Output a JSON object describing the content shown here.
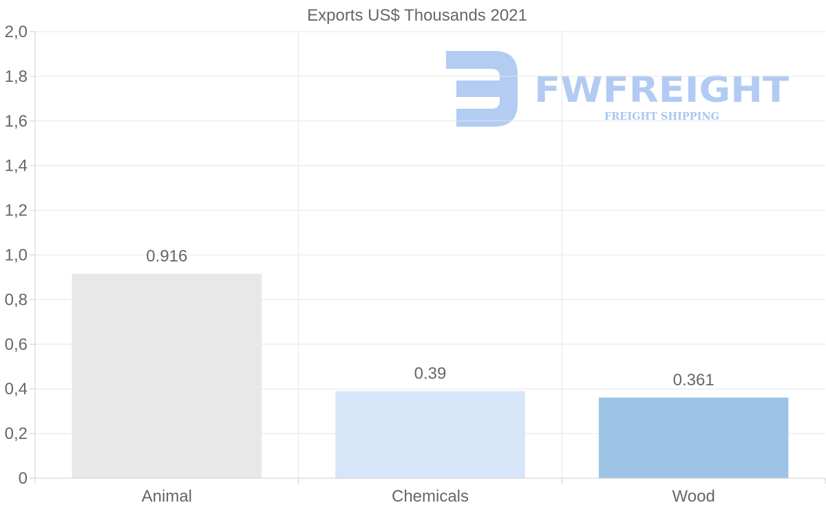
{
  "chart_data": {
    "type": "bar",
    "title": "Exports US$ Thousands 2021",
    "categories": [
      "Animal",
      "Chemicals",
      "Wood"
    ],
    "values": [
      0.916,
      0.39,
      0.361
    ],
    "value_labels": [
      "0.916",
      "0.39",
      "0.361"
    ],
    "colors": [
      "#e8e8e8",
      "#d6e6f8",
      "#9dc4e6"
    ],
    "ylim": [
      0,
      2.0
    ],
    "yticks": [
      0,
      0.2,
      0.4,
      0.6,
      0.8,
      1.0,
      1.2,
      1.4,
      1.6,
      1.8,
      2.0
    ],
    "ytick_labels": [
      "0",
      "0,2",
      "0,4",
      "0,6",
      "0,8",
      "1,0",
      "1,2",
      "1,4",
      "1,6",
      "1,8",
      "2,0"
    ],
    "xlabel": "",
    "ylabel": "",
    "grid": true,
    "legend": "none"
  },
  "watermark": {
    "brand": "FWFREIGHT",
    "tagline": "FREIGHT SHIPPING",
    "color": "#a4c3f0"
  }
}
